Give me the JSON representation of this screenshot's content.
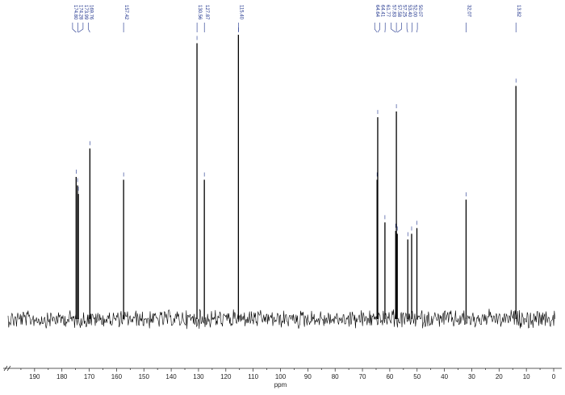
{
  "chart_data": {
    "type": "line",
    "title": "",
    "xlabel": "ppm",
    "ylabel": "",
    "xlim": [
      200,
      0
    ],
    "x_reversed": true,
    "x_ticks": [
      190,
      180,
      170,
      160,
      150,
      140,
      130,
      120,
      110,
      100,
      90,
      80,
      70,
      60,
      50,
      40,
      30,
      20,
      10,
      0
    ],
    "y_axis_shown": false,
    "grid": false,
    "legend": "none",
    "colors": {
      "trace": "#000000",
      "labels": "#1a2f8a",
      "axis": "#222222"
    },
    "peaks": [
      {
        "ppm": 174.8,
        "label": "174.80",
        "rel_intensity": 0.5
      },
      {
        "ppm": 174.28,
        "label": "174.28",
        "rel_intensity": 0.47
      },
      {
        "ppm": 173.99,
        "label": "173.99",
        "rel_intensity": 0.44
      },
      {
        "ppm": 169.76,
        "label": "169.76",
        "rel_intensity": 0.6
      },
      {
        "ppm": 157.42,
        "label": "157.42",
        "rel_intensity": 0.49
      },
      {
        "ppm": 130.56,
        "label": "130.56",
        "rel_intensity": 0.97
      },
      {
        "ppm": 127.87,
        "label": "127.87",
        "rel_intensity": 0.49
      },
      {
        "ppm": 115.4,
        "label": "115.40",
        "rel_intensity": 1.0
      },
      {
        "ppm": 64.64,
        "label": "64.64",
        "rel_intensity": 0.49
      },
      {
        "ppm": 64.41,
        "label": "64.41",
        "rel_intensity": 0.71
      },
      {
        "ppm": 61.77,
        "label": "61.77",
        "rel_intensity": 0.34
      },
      {
        "ppm": 57.83,
        "label": "57.83",
        "rel_intensity": 0.31
      },
      {
        "ppm": 57.58,
        "label": "57.58",
        "rel_intensity": 0.73
      },
      {
        "ppm": 57.25,
        "label": "57.25",
        "rel_intensity": 0.3
      },
      {
        "ppm": 53.4,
        "label": "53.40",
        "rel_intensity": 0.28
      },
      {
        "ppm": 52.0,
        "label": "52.00",
        "rel_intensity": 0.3
      },
      {
        "ppm": 50.07,
        "label": "50.07",
        "rel_intensity": 0.32
      },
      {
        "ppm": 32.07,
        "label": "32.07",
        "rel_intensity": 0.42
      },
      {
        "ppm": 13.82,
        "label": "13.82",
        "rel_intensity": 0.82
      }
    ]
  }
}
